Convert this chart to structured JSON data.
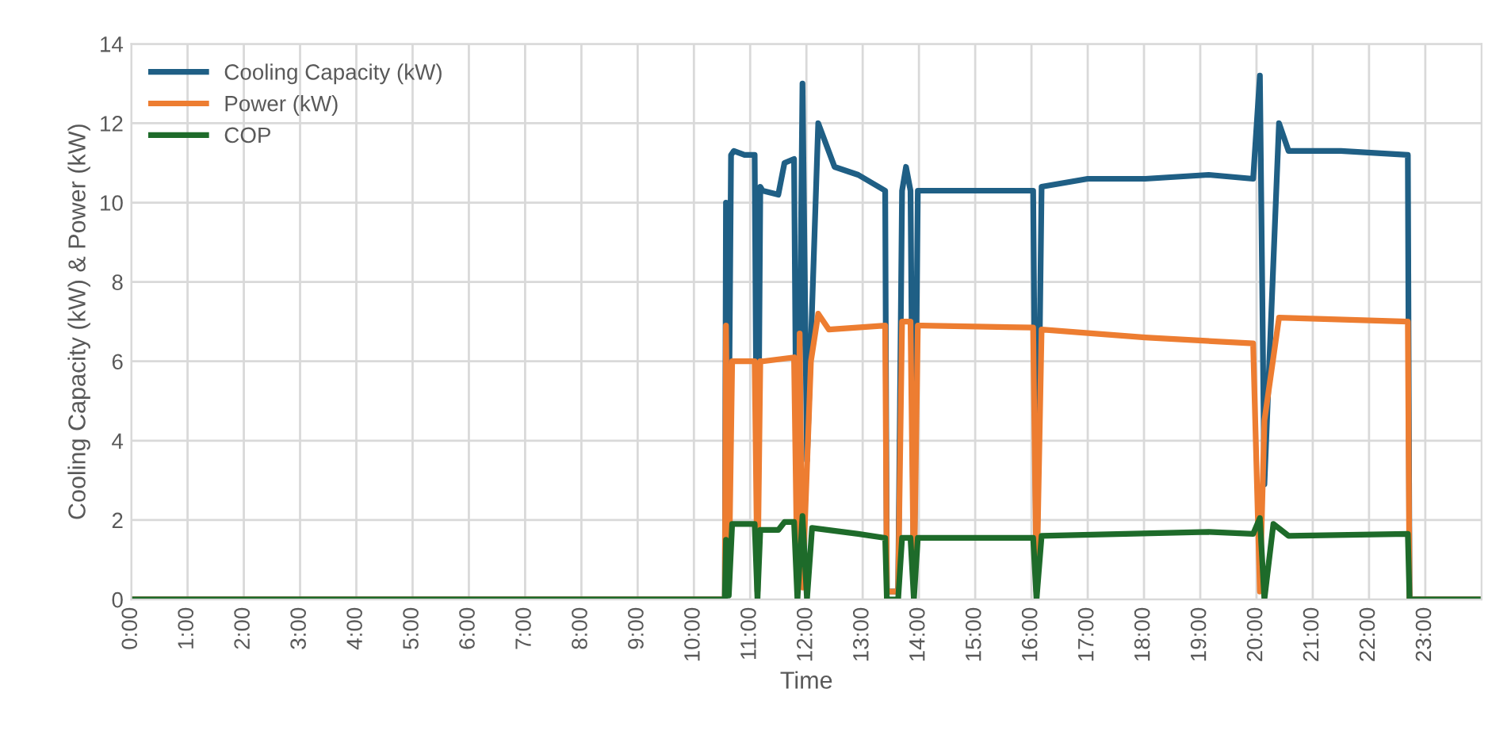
{
  "chart_data": {
    "type": "line",
    "xlabel": "Time",
    "ylabel": "Cooling Capacity (kW) & Power (kW)",
    "xlim": [
      0,
      24
    ],
    "xticks": [
      {
        "value": 0,
        "label": "0:00"
      },
      {
        "value": 1,
        "label": "1:00"
      },
      {
        "value": 2,
        "label": "2:00"
      },
      {
        "value": 3,
        "label": "3:00"
      },
      {
        "value": 4,
        "label": "4:00"
      },
      {
        "value": 5,
        "label": "5:00"
      },
      {
        "value": 6,
        "label": "6:00"
      },
      {
        "value": 7,
        "label": "7:00"
      },
      {
        "value": 8,
        "label": "8:00"
      },
      {
        "value": 9,
        "label": "9:00"
      },
      {
        "value": 10,
        "label": "10:00"
      },
      {
        "value": 11,
        "label": "11:00"
      },
      {
        "value": 12,
        "label": "12:00"
      },
      {
        "value": 13,
        "label": "13:00"
      },
      {
        "value": 14,
        "label": "14:00"
      },
      {
        "value": 15,
        "label": "15:00"
      },
      {
        "value": 16,
        "label": "16:00"
      },
      {
        "value": 17,
        "label": "17:00"
      },
      {
        "value": 18,
        "label": "18:00"
      },
      {
        "value": 19,
        "label": "19:00"
      },
      {
        "value": 20,
        "label": "20:00"
      },
      {
        "value": 21,
        "label": "21:00"
      },
      {
        "value": 22,
        "label": "22:00"
      },
      {
        "value": 23,
        "label": "23:00"
      }
    ],
    "ylim": [
      0,
      14
    ],
    "yticks": [
      0,
      2,
      4,
      6,
      8,
      10,
      12,
      14
    ],
    "grid": true,
    "legend": "top left",
    "marker": "none",
    "line_style": "solid",
    "series": [
      {
        "name": "Cooling Capacity (kW)",
        "color": "#1f5f85",
        "x": [
          0,
          10.55,
          10.57,
          10.6,
          10.66,
          10.71,
          10.9,
          11.08,
          11.13,
          11.18,
          11.22,
          11.5,
          11.61,
          11.78,
          11.84,
          11.93,
          12.01,
          12.21,
          12.5,
          12.92,
          13.4,
          13.43,
          13.63,
          13.7,
          13.77,
          13.85,
          13.91,
          13.98,
          14.05,
          15.0,
          16.03,
          16.09,
          16.18,
          17.0,
          18.02,
          19.15,
          19.94,
          20.06,
          20.14,
          20.4,
          20.57,
          21.5,
          22.69,
          22.72,
          24
        ],
        "values": [
          0,
          0,
          10.0,
          0.2,
          11.2,
          11.3,
          11.2,
          11.2,
          0.2,
          10.4,
          10.3,
          10.2,
          11.0,
          11.1,
          0.2,
          13.0,
          3.5,
          12.0,
          10.9,
          10.7,
          10.3,
          0.2,
          0.2,
          10.3,
          10.9,
          10.3,
          0.2,
          10.3,
          10.3,
          10.3,
          10.3,
          0.2,
          10.4,
          10.6,
          10.6,
          10.7,
          10.6,
          13.2,
          2.9,
          12.0,
          11.3,
          11.3,
          11.2,
          0,
          0
        ]
      },
      {
        "name": "Power (kW)",
        "color": "#ed7d31",
        "x": [
          0,
          10.55,
          10.57,
          10.62,
          10.68,
          11.08,
          11.13,
          11.18,
          11.22,
          11.78,
          11.84,
          11.88,
          11.93,
          12.08,
          12.21,
          12.4,
          13.4,
          13.43,
          13.63,
          13.7,
          13.85,
          13.91,
          13.98,
          14.05,
          16.03,
          16.09,
          16.18,
          18.02,
          19.94,
          20.06,
          20.14,
          20.4,
          22.69,
          22.72,
          24
        ],
        "values": [
          0,
          0,
          6.9,
          0.2,
          6.0,
          6.0,
          0.2,
          6.0,
          6.0,
          6.1,
          0.2,
          6.7,
          0.3,
          6.0,
          7.2,
          6.8,
          6.9,
          0.2,
          0.2,
          7.0,
          7.0,
          0.2,
          6.9,
          6.9,
          6.85,
          0.2,
          6.8,
          6.6,
          6.45,
          0.2,
          4.5,
          7.1,
          7.0,
          0,
          0
        ]
      },
      {
        "name": "COP",
        "color": "#1e6b2a",
        "x": [
          0,
          10.55,
          10.57,
          10.62,
          10.68,
          11.08,
          11.13,
          11.18,
          11.22,
          11.5,
          11.61,
          11.78,
          11.84,
          11.93,
          12.01,
          12.1,
          12.92,
          13.4,
          13.43,
          13.63,
          13.7,
          13.85,
          13.91,
          13.98,
          16.03,
          16.09,
          16.18,
          19.15,
          19.94,
          20.06,
          20.14,
          20.3,
          20.57,
          22.69,
          22.72,
          24
        ],
        "values": [
          0,
          0,
          1.5,
          0.1,
          1.9,
          1.9,
          0,
          1.75,
          1.75,
          1.75,
          1.95,
          1.95,
          0,
          2.1,
          0,
          1.8,
          1.65,
          1.55,
          0,
          0,
          1.55,
          1.55,
          0,
          1.55,
          1.55,
          0,
          1.6,
          1.7,
          1.65,
          2.05,
          0,
          1.9,
          1.6,
          1.65,
          0,
          0
        ]
      }
    ]
  }
}
